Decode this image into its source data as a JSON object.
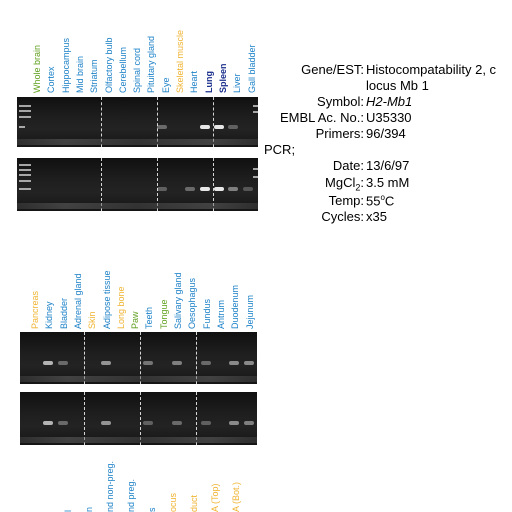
{
  "colors": {
    "green": "#5fa01e",
    "blue": "#1e82c8",
    "orange": "#f0b432",
    "navy": "#1a2f8c"
  },
  "top_lanes": [
    {
      "name": "Whole brain",
      "color": "green"
    },
    {
      "name": "Cortex",
      "color": "blue"
    },
    {
      "name": "Hippocampus",
      "color": "blue"
    },
    {
      "name": "Mid brain",
      "color": "blue"
    },
    {
      "name": "Striatum",
      "color": "blue"
    },
    {
      "name": "Olfactory bulb",
      "color": "blue"
    },
    {
      "name": "Cerebellum",
      "color": "blue"
    },
    {
      "name": "Spinal cord",
      "color": "blue"
    },
    {
      "name": "Pituitary gland",
      "color": "blue"
    },
    {
      "name": "Eye",
      "color": "blue"
    },
    {
      "name": "Skeletal muscle",
      "color": "orange"
    },
    {
      "name": "Heart",
      "color": "blue"
    },
    {
      "name": "Lung",
      "color": "navy"
    },
    {
      "name": "Spleen",
      "color": "navy"
    },
    {
      "name": "Liver",
      "color": "blue"
    },
    {
      "name": "Gall bladder",
      "color": "blue"
    }
  ],
  "middle_lanes": [
    {
      "name": "Pancreas",
      "color": "orange"
    },
    {
      "name": "Kidney",
      "color": "blue"
    },
    {
      "name": "Bladder",
      "color": "blue"
    },
    {
      "name": "Adrenal gland",
      "color": "blue"
    },
    {
      "name": "Skin",
      "color": "orange"
    },
    {
      "name": "Adipose tissue",
      "color": "blue"
    },
    {
      "name": "Long bone",
      "color": "orange"
    },
    {
      "name": "Paw",
      "color": "green"
    },
    {
      "name": "Teeth",
      "color": "blue"
    },
    {
      "name": "Tongue",
      "color": "green"
    },
    {
      "name": "Salivary gland",
      "color": "blue"
    },
    {
      "name": "Oesophagus",
      "color": "blue"
    },
    {
      "name": "Fundus",
      "color": "blue"
    },
    {
      "name": "Antrum",
      "color": "blue"
    },
    {
      "name": "Duodenum",
      "color": "blue"
    },
    {
      "name": "Jejunum",
      "color": "blue"
    }
  ],
  "bottom_lanes": [
    {
      "name": "l",
      "color": "blue"
    },
    {
      "name": "n",
      "color": "blue"
    },
    {
      "name": "nd non-preg.",
      "color": "blue"
    },
    {
      "name": "nd preg.",
      "color": "blue"
    },
    {
      "name": "s",
      "color": "blue"
    },
    {
      "name": "ocus",
      "color": "orange"
    },
    {
      "name": "duct",
      "color": "orange"
    },
    {
      "name": "A (Top)",
      "color": "orange"
    },
    {
      "name": "A (Bot.)",
      "color": "orange"
    }
  ],
  "info": {
    "gene_label": "Gene/EST:",
    "gene_value_line1": "Histocompatability 2, c",
    "gene_value_line2": "locus Mb 1",
    "symbol_label": "Symbol:",
    "symbol_value": "H2-Mb1",
    "embl_label": "EMBL Ac. No.:",
    "embl_value": "U35330",
    "primers_label": "Primers:",
    "primers_value": "96/394",
    "pcr_label": "PCR;",
    "date_label": "Date:",
    "date_value": "13/6/97",
    "mgcl_label_main": "MgCl",
    "mgcl_label_sub": "2",
    "mgcl_label_colon": ":",
    "mgcl_value": "3.5 mM",
    "temp_label": "Temp:",
    "temp_value_num": "55",
    "temp_value_deg": "o",
    "temp_value_unit": "C",
    "cycles_label": "Cycles:",
    "cycles_value": "x35"
  },
  "gel_bands": {
    "top_gel_1": [
      {
        "lane": 9,
        "intensity": 0.35
      },
      {
        "lane": 12,
        "intensity": 0.95
      },
      {
        "lane": 13,
        "intensity": 0.95
      },
      {
        "lane": 14,
        "intensity": 0.3
      }
    ],
    "top_gel_2": [
      {
        "lane": 9,
        "intensity": 0.3
      },
      {
        "lane": 11,
        "intensity": 0.35
      },
      {
        "lane": 12,
        "intensity": 0.95
      },
      {
        "lane": 13,
        "intensity": 0.95
      },
      {
        "lane": 14,
        "intensity": 0.45
      },
      {
        "lane": 15,
        "intensity": 0.25
      }
    ],
    "mid_gel_1": [
      {
        "lane": 1,
        "intensity": 0.7
      },
      {
        "lane": 2,
        "intensity": 0.35
      },
      {
        "lane": 5,
        "intensity": 0.55
      },
      {
        "lane": 8,
        "intensity": 0.4
      },
      {
        "lane": 10,
        "intensity": 0.45
      },
      {
        "lane": 12,
        "intensity": 0.35
      },
      {
        "lane": 14,
        "intensity": 0.5
      },
      {
        "lane": 15,
        "intensity": 0.5
      }
    ],
    "mid_gel_2": [
      {
        "lane": 1,
        "intensity": 0.7
      },
      {
        "lane": 2,
        "intensity": 0.35
      },
      {
        "lane": 5,
        "intensity": 0.55
      },
      {
        "lane": 8,
        "intensity": 0.3
      },
      {
        "lane": 10,
        "intensity": 0.35
      },
      {
        "lane": 12,
        "intensity": 0.3
      },
      {
        "lane": 14,
        "intensity": 0.5
      },
      {
        "lane": 15,
        "intensity": 0.45
      }
    ]
  }
}
